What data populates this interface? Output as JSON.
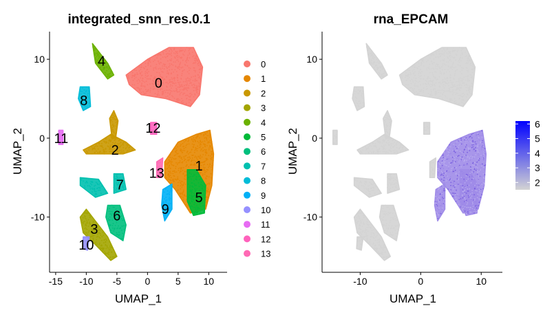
{
  "figure": {
    "panels": [
      "integrated_snn_res.0.1",
      "rna_EPCAM"
    ]
  },
  "chart_data": [
    {
      "type": "scatter",
      "title": "integrated_snn_res.0.1",
      "xlabel": "UMAP_1",
      "ylabel": "UMAP_2",
      "xlim": [
        -16,
        13
      ],
      "ylim": [
        -17,
        13.5
      ],
      "xticks": [
        -15,
        -10,
        -5,
        0,
        5,
        10
      ],
      "yticks": [
        -10,
        0,
        10
      ],
      "grid": false,
      "legend_position": "right",
      "point_size": "small",
      "series": [
        {
          "name": "0",
          "color": "#F8766D",
          "label_x": 1.8,
          "label_y": 7.0
        },
        {
          "name": "1",
          "color": "#E58700",
          "label_x": 8.4,
          "label_y": -3.5
        },
        {
          "name": "2",
          "color": "#C99800",
          "label_x": -5.3,
          "label_y": -1.5
        },
        {
          "name": "3",
          "color": "#A3A500",
          "label_x": -8.7,
          "label_y": -11.5
        },
        {
          "name": "4",
          "color": "#6BB100",
          "label_x": -7.5,
          "label_y": 9.8
        },
        {
          "name": "5",
          "color": "#00BA38",
          "label_x": 8.4,
          "label_y": -7.5
        },
        {
          "name": "6",
          "color": "#00BF7D",
          "label_x": -5.0,
          "label_y": -9.8
        },
        {
          "name": "7",
          "color": "#00C0AF",
          "label_x": -4.5,
          "label_y": -5.9
        },
        {
          "name": "8",
          "color": "#00BCD8",
          "label_x": -10.4,
          "label_y": 4.8
        },
        {
          "name": "9",
          "color": "#00B0F6",
          "label_x": 2.9,
          "label_y": -9.0
        },
        {
          "name": "10",
          "color": "#9590FF",
          "label_x": -10.0,
          "label_y": -13.5
        },
        {
          "name": "11",
          "color": "#E76BF3",
          "label_x": -14.1,
          "label_y": 0.0
        },
        {
          "name": "12",
          "color": "#FF62BC",
          "label_x": 0.9,
          "label_y": 1.3
        },
        {
          "name": "13",
          "color": "#FF69B4",
          "label_x": 1.5,
          "label_y": -4.4
        }
      ]
    },
    {
      "type": "scatter",
      "title": "rna_EPCAM",
      "xlabel": "UMAP_1",
      "ylabel": "UMAP_2",
      "xlim": [
        -16.3,
        13.5
      ],
      "ylim": [
        -17,
        13.5
      ],
      "xticks": [
        -10,
        0,
        10
      ],
      "yticks": [
        -10,
        0,
        10
      ],
      "grid": false,
      "point_size": "small",
      "low_color": "#D3D3D3",
      "high_color": "#0000FF",
      "expressing_cluster_color": "#9F8BE8",
      "colorbar": {
        "position": "right",
        "ticks": [
          "6",
          "5",
          "4",
          "3",
          "2"
        ],
        "range": [
          1.5,
          6.2
        ]
      }
    }
  ]
}
